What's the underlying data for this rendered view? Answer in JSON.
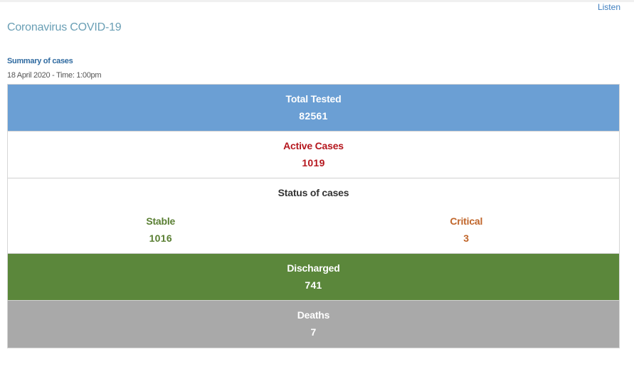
{
  "header": {
    "listen_label": "Listen",
    "page_title": "Coronavirus COVID-19"
  },
  "summary": {
    "title": "Summary of cases",
    "date": "18 April 2020 - Time: 1:00pm"
  },
  "stats": {
    "total_tested": {
      "label": "Total Tested",
      "value": "82561"
    },
    "active_cases": {
      "label": "Active Cases",
      "value": "1019"
    },
    "status": {
      "label": "Status of cases",
      "stable": {
        "label": "Stable",
        "value": "1016"
      },
      "critical": {
        "label": "Critical",
        "value": "3"
      }
    },
    "discharged": {
      "label": "Discharged",
      "value": "741"
    },
    "deaths": {
      "label": "Deaths",
      "value": "7"
    }
  },
  "colors": {
    "tested_bg": "#6b9fd4",
    "active_text": "#b5171e",
    "stable_text": "#5a7f33",
    "critical_text": "#c0652a",
    "discharged_bg": "#5b873b",
    "deaths_bg": "#a9a9a9"
  }
}
